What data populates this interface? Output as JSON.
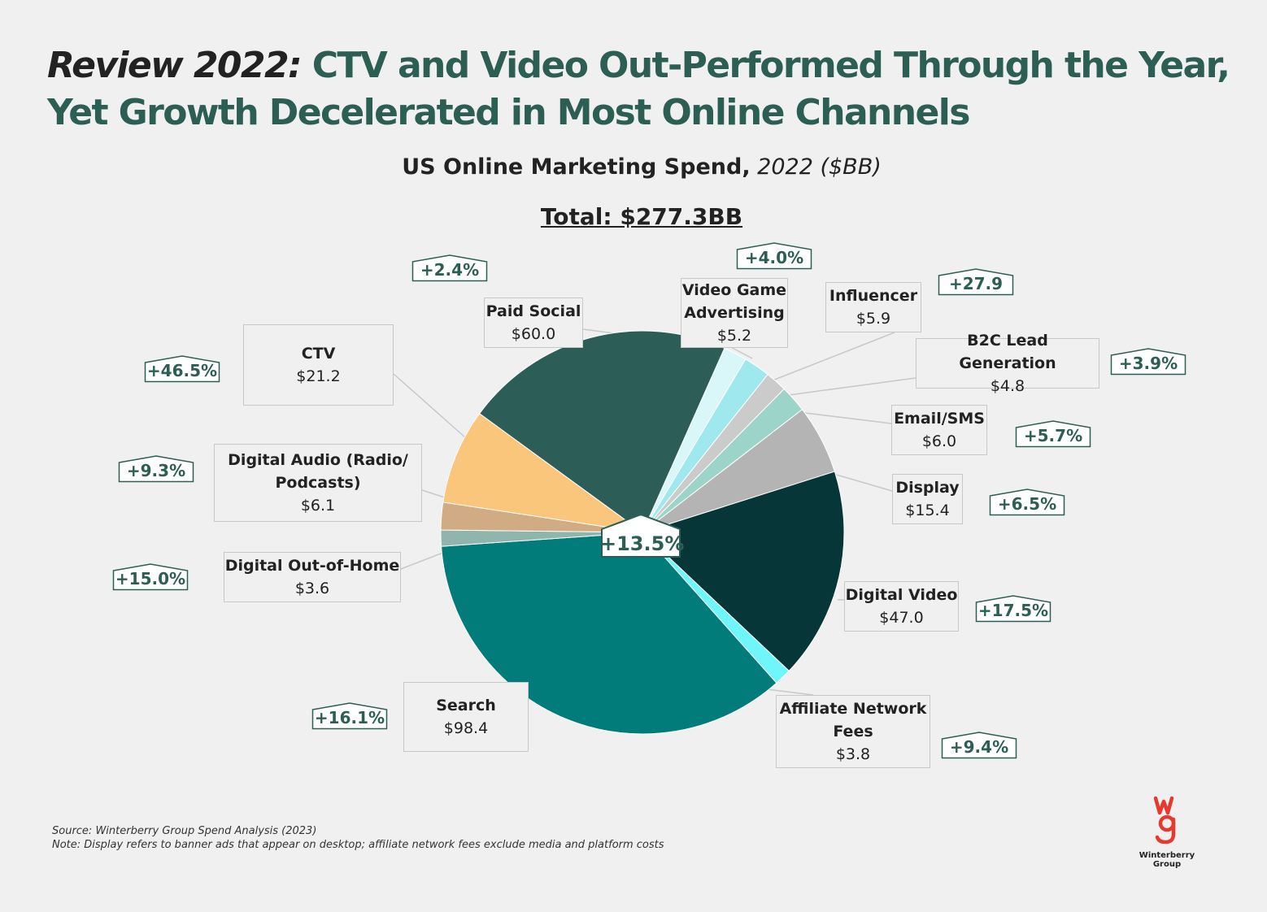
{
  "header": {
    "title_lead": "Review 2022:",
    "title_rest": "CTV and Video Out-Performed Through the Year, Yet Growth Decelerated in Most Online Channels",
    "subtitle_bold": "US Online Marketing Spend,",
    "subtitle_italic": "2022 ($BB)",
    "total": "Total: $277.3BB"
  },
  "chart_data": {
    "type": "pie",
    "title": "US Online Marketing Spend, 2022 ($BB)",
    "total_label": "Total: $277.3BB",
    "overall_growth": "+13.5%",
    "slices": [
      {
        "name": "Video Game Advertising",
        "value": 5.2,
        "value_label": "$5.2",
        "growth": "+4.0%",
        "color": "#d9f6f8"
      },
      {
        "name": "Influencer",
        "value": 5.9,
        "value_label": "$5.9",
        "growth": "+27.9",
        "color": "#9fe9ee"
      },
      {
        "name": "B2C Lead Generation",
        "value": 4.8,
        "value_label": "$4.8",
        "growth": "+3.9%",
        "color": "#cbcbcb"
      },
      {
        "name": "Email/SMS",
        "value": 6.0,
        "value_label": "$6.0",
        "growth": "+5.7%",
        "color": "#9dd4ca"
      },
      {
        "name": "Display",
        "value": 15.4,
        "value_label": "$15.4",
        "growth": "+6.5%",
        "color": "#b4b4b4"
      },
      {
        "name": "Digital Video",
        "value": 47.0,
        "value_label": "$47.0",
        "growth": "+17.5%",
        "color": "#073638"
      },
      {
        "name": "Affiliate Network Fees",
        "value": 3.8,
        "value_label": "$3.8",
        "growth": "+9.4%",
        "color": "#6ff6fb"
      },
      {
        "name": "Search",
        "value": 98.4,
        "value_label": "$98.4",
        "growth": "+16.1%",
        "color": "#017c7a"
      },
      {
        "name": "Digital Out-of-Home",
        "value": 3.6,
        "value_label": "$3.6",
        "growth": "+15.0%",
        "color": "#8fb5ad"
      },
      {
        "name": "Digital Audio (Radio/ Podcasts)",
        "value": 6.1,
        "value_label": "$6.1",
        "growth": "+9.3%",
        "color": "#d1ab84"
      },
      {
        "name": "CTV",
        "value": 21.2,
        "value_label": "$21.2",
        "growth": "+46.5%",
        "color": "#f9c67c"
      },
      {
        "name": "Paid Social",
        "value": 60.0,
        "value_label": "$60.0",
        "growth": "+2.4%",
        "color": "#2c5e57"
      }
    ]
  },
  "footer": {
    "source": "Source: Winterberry Group Spend Analysis (2023)",
    "note": "Note: Display refers to banner ads that appear on desktop; affiliate network fees exclude media and platform costs",
    "logo_text": "Winterberry Group",
    "logo_mark": "wg"
  },
  "colors": {
    "accent": "#2c5e54",
    "badge_border": "#2c5e54",
    "leader": "#c8c8c8"
  }
}
